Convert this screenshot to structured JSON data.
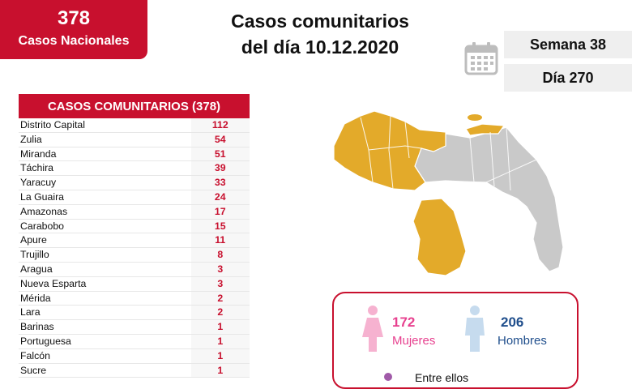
{
  "national": {
    "count": "378",
    "label": "Casos Nacionales"
  },
  "title": {
    "line1": "Casos comunitarios",
    "line2": "del día 10.12.2020"
  },
  "week_label": "Semana 38",
  "day_label": "Día 270",
  "table": {
    "header": "CASOS COMUNITARIOS (378)",
    "rows": [
      {
        "state": "Distrito Capital",
        "cases": "112"
      },
      {
        "state": "Zulia",
        "cases": "54"
      },
      {
        "state": "Miranda",
        "cases": "51"
      },
      {
        "state": "Táchira",
        "cases": "39"
      },
      {
        "state": "Yaracuy",
        "cases": "33"
      },
      {
        "state": "La Guaira",
        "cases": "24"
      },
      {
        "state": "Amazonas",
        "cases": "17"
      },
      {
        "state": "Carabobo",
        "cases": "15"
      },
      {
        "state": "Apure",
        "cases": "11"
      },
      {
        "state": "Trujillo",
        "cases": "8"
      },
      {
        "state": "Aragua",
        "cases": "3"
      },
      {
        "state": "Nueva Esparta",
        "cases": "3"
      },
      {
        "state": "Mérida",
        "cases": "2"
      },
      {
        "state": "Lara",
        "cases": "2"
      },
      {
        "state": "Barinas",
        "cases": "1"
      },
      {
        "state": "Portuguesa",
        "cases": "1"
      },
      {
        "state": "Falcón",
        "cases": "1"
      },
      {
        "state": "Sucre",
        "cases": "1"
      }
    ]
  },
  "gender": {
    "women_count": "172",
    "women_label": "Mujeres",
    "men_count": "206",
    "men_label": "Hombres",
    "footer_text": "Entre ellos"
  },
  "colors": {
    "red": "#c8102e",
    "affected": "#e3aa2a",
    "unaffected": "#c9c9c9",
    "women": "#e7418f",
    "men": "#1f4e8c"
  }
}
